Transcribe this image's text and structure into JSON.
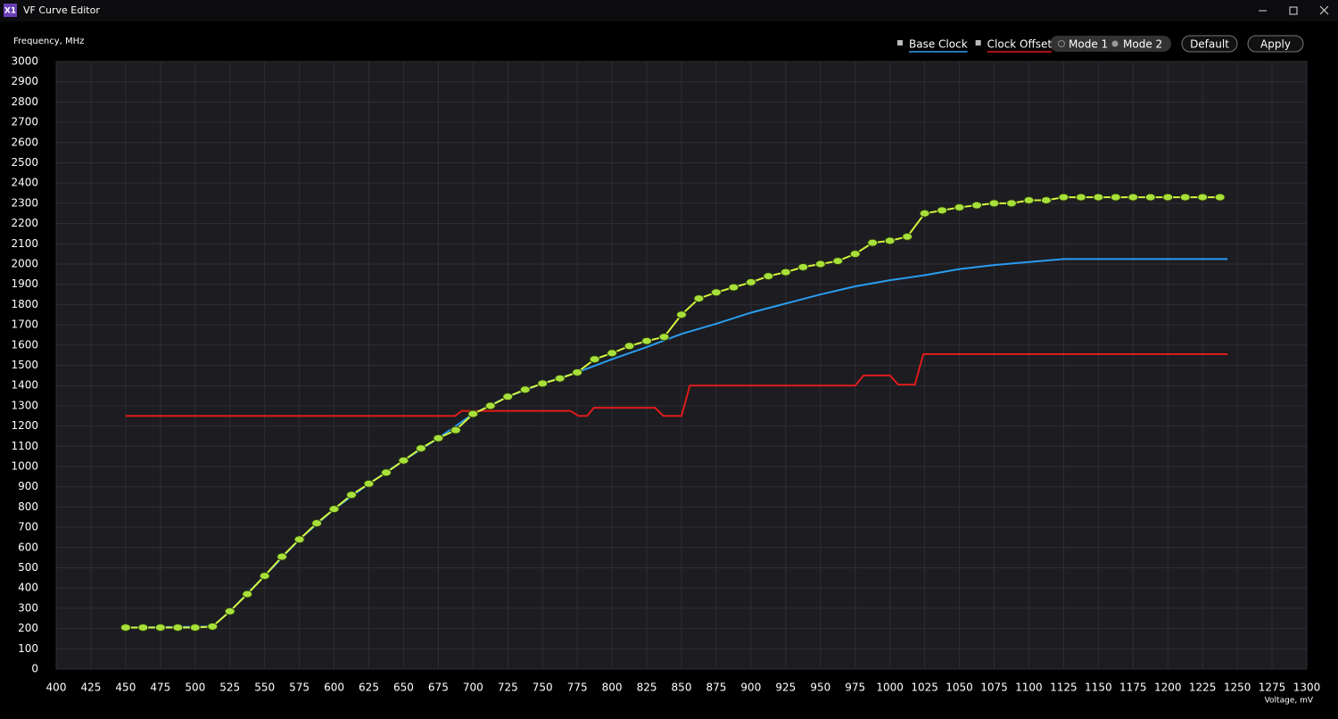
{
  "window": {
    "icon": "X1",
    "title": "VF Curve Editor"
  },
  "controls": {
    "mode1": "Mode 1",
    "mode2": "Mode 2",
    "default": "Default",
    "apply": "Apply"
  },
  "chart_data": {
    "type": "line",
    "y_label": "Frequency, MHz",
    "x_label": "Voltage, mV",
    "xlim": [
      400,
      1300
    ],
    "ylim": [
      0,
      3000
    ],
    "xticks": [
      400,
      425,
      450,
      475,
      500,
      525,
      550,
      575,
      600,
      625,
      650,
      675,
      700,
      725,
      750,
      775,
      800,
      825,
      850,
      875,
      900,
      925,
      950,
      975,
      1000,
      1025,
      1050,
      1075,
      1100,
      1125,
      1150,
      1175,
      1200,
      1225,
      1250,
      1275,
      1300
    ],
    "yticks": [
      0,
      100,
      200,
      300,
      400,
      500,
      600,
      700,
      800,
      900,
      1000,
      1100,
      1200,
      1300,
      1400,
      1500,
      1600,
      1700,
      1800,
      1900,
      2000,
      2100,
      2200,
      2300,
      2400,
      2500,
      2600,
      2700,
      2800,
      2900,
      3000
    ],
    "grid": true,
    "series": [
      {
        "name": "Base Clock",
        "color": "#2a9df0",
        "x": [
          450,
          512.5,
          525,
          550,
          575,
          600,
          625,
          650,
          675,
          700,
          725,
          750,
          775,
          800,
          825,
          850,
          875,
          900,
          925,
          950,
          975,
          1000,
          1025,
          1050,
          1075,
          1100,
          1125,
          1243
        ],
        "values": [
          205,
          210,
          285,
          460,
          640,
          790,
          915,
          1030,
          1140,
          1260,
          1345,
          1410,
          1465,
          1530,
          1590,
          1655,
          1705,
          1760,
          1805,
          1850,
          1890,
          1920,
          1945,
          1975,
          1995,
          2010,
          2025,
          2025
        ]
      },
      {
        "name": "Clock Offset",
        "color": "#e01b1b",
        "x": [
          450,
          687,
          692,
          770,
          776,
          782,
          787,
          831,
          837,
          850,
          856,
          975,
          981,
          1000,
          1006,
          1018,
          1024,
          1243
        ],
        "values": [
          1250,
          1250,
          1275,
          1275,
          1250,
          1250,
          1290,
          1290,
          1250,
          1250,
          1400,
          1400,
          1450,
          1450,
          1405,
          1405,
          1555,
          1555
        ]
      },
      {
        "color": "#d4f53c",
        "markers": true,
        "x": [
          450,
          462.5,
          475,
          487.5,
          500,
          512.5,
          525,
          537.5,
          550,
          562.5,
          575,
          587.5,
          600,
          612.5,
          625,
          637.5,
          650,
          662.5,
          675,
          687.5,
          700,
          712.5,
          725,
          737.5,
          750,
          762.5,
          775,
          787.5,
          800,
          812.5,
          825,
          837.5,
          850,
          862.5,
          875,
          887.5,
          900,
          912.5,
          925,
          937.5,
          950,
          962.5,
          975,
          987.5,
          1000,
          1012.5,
          1025,
          1037.5,
          1050,
          1062.5,
          1075,
          1087.5,
          1100,
          1112.5,
          1125,
          1137.5,
          1150,
          1162.5,
          1175,
          1187.5,
          1200,
          1212.5,
          1225,
          1237.5
        ],
        "values": [
          205,
          205,
          205,
          205,
          205,
          210,
          285,
          370,
          460,
          555,
          640,
          720,
          790,
          860,
          915,
          970,
          1030,
          1090,
          1140,
          1180,
          1260,
          1300,
          1345,
          1380,
          1410,
          1435,
          1465,
          1530,
          1560,
          1595,
          1620,
          1640,
          1750,
          1830,
          1860,
          1885,
          1910,
          1940,
          1960,
          1985,
          2000,
          2015,
          2050,
          2105,
          2115,
          2135,
          2250,
          2265,
          2280,
          2290,
          2300,
          2300,
          2315,
          2315,
          2330,
          2330,
          2330,
          2330,
          2330,
          2330,
          2330,
          2330,
          2330,
          2330
        ]
      }
    ]
  }
}
